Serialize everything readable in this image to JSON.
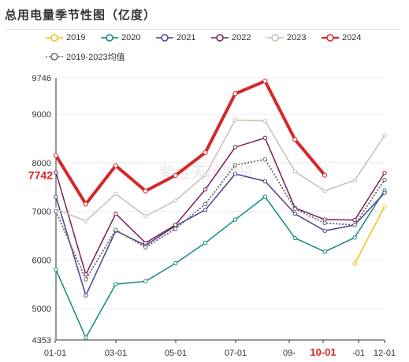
{
  "chart_data": {
    "type": "line",
    "title": "总用电量季节性图（亿度）",
    "xlabel": "",
    "ylabel": "",
    "ylim": [
      4353,
      9746
    ],
    "y_ticks": [
      "4353",
      "5000",
      "6000",
      "7000",
      "8000",
      "9000",
      "9746"
    ],
    "x_ticks": [
      "01-01",
      "03-01",
      "05-01",
      "07-01",
      "09-",
      "10-01",
      "-01",
      "12-01"
    ],
    "x_tick_highlight": "10-01",
    "current_value_label": "7742",
    "current_value": 7742,
    "watermark": "紫金天风期货",
    "months": [
      "01",
      "02",
      "03",
      "04",
      "05",
      "06",
      "07",
      "08",
      "09",
      "10",
      "11",
      "12"
    ],
    "legend_position": "top",
    "series": [
      {
        "name": "2019",
        "color": "#f1c40f",
        "width": 1.5,
        "dash": "",
        "values": [
          null,
          null,
          null,
          null,
          null,
          null,
          null,
          null,
          null,
          null,
          5920,
          7100
        ]
      },
      {
        "name": "2020",
        "color": "#138685",
        "width": 1.5,
        "dash": "",
        "values": [
          5800,
          4400,
          5500,
          5560,
          5930,
          6350,
          6830,
          7300,
          6450,
          6170,
          6460,
          7430
        ]
      },
      {
        "name": "2021",
        "color": "#4b3f8f",
        "width": 1.5,
        "dash": "",
        "values": [
          7300,
          5270,
          6600,
          6300,
          6700,
          7030,
          7770,
          7620,
          6950,
          6600,
          6720,
          7380
        ]
      },
      {
        "name": "2022",
        "color": "#7a1c5e",
        "width": 1.5,
        "dash": "",
        "values": [
          7800,
          5700,
          6950,
          6350,
          6720,
          7450,
          8320,
          8510,
          7070,
          6830,
          6820,
          7790
        ]
      },
      {
        "name": "2023",
        "color": "#c8bfb0",
        "width": 1.5,
        "dash": "",
        "values": [
          7050,
          6800,
          7360,
          6900,
          7220,
          7750,
          8880,
          8860,
          7820,
          7420,
          7640,
          8560
        ]
      },
      {
        "name": "2024",
        "color": "#d62728",
        "width": 4,
        "dash": "",
        "values": [
          8150,
          7150,
          7940,
          7420,
          7740,
          8210,
          9420,
          9680,
          8480,
          7742,
          null,
          null
        ]
      },
      {
        "name": "2019-2023均值",
        "color": "#666666",
        "width": 1.8,
        "dash": "2,2",
        "values": [
          7000,
          5600,
          6620,
          6260,
          6640,
          7150,
          7950,
          8070,
          7050,
          6760,
          6720,
          7650
        ]
      }
    ]
  }
}
